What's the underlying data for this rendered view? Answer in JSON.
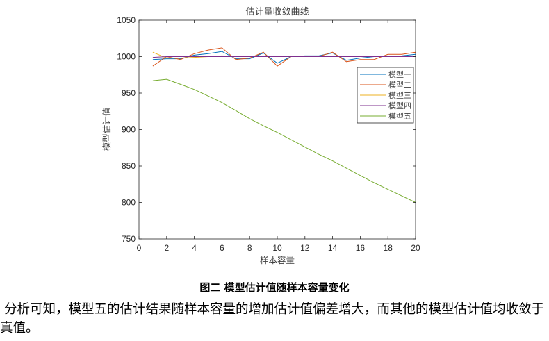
{
  "chart_data": {
    "type": "line",
    "title": "估计量收敛曲线",
    "xlabel": "样本容量",
    "ylabel": "模型估计值",
    "xlim": [
      0,
      20
    ],
    "ylim": [
      750,
      1050
    ],
    "xticks": [
      0,
      2,
      4,
      6,
      8,
      10,
      12,
      14,
      16,
      18,
      20
    ],
    "yticks": [
      750,
      800,
      850,
      900,
      950,
      1000,
      1050
    ],
    "grid": false,
    "legend_position": "right-middle",
    "x": [
      1,
      2,
      3,
      4,
      5,
      6,
      7,
      8,
      9,
      10,
      11,
      12,
      13,
      14,
      15,
      16,
      17,
      18,
      19,
      20
    ],
    "series": [
      {
        "name": "模型一",
        "color": "#0072BD",
        "values": [
          996,
          997,
          997,
          1002,
          1004,
          1007,
          997,
          997,
          1005,
          991,
          1000,
          1001,
          1001,
          1005,
          995,
          998,
          1000,
          1000,
          1001,
          1003
        ]
      },
      {
        "name": "模型二",
        "color": "#D95319",
        "values": [
          987,
          1000,
          996,
          1004,
          1009,
          1012,
          996,
          998,
          1006,
          987,
          1000,
          1000,
          1000,
          1006,
          993,
          996,
          996,
          1003,
          1003,
          1006
        ]
      },
      {
        "name": "模型三",
        "color": "#EDB120",
        "values": [
          1006,
          998,
          998,
          999,
          1000,
          1001,
          1000,
          1000,
          1000,
          1000,
          1000,
          1000,
          1000,
          1000,
          1000,
          1000,
          1000,
          1000,
          1000,
          1000
        ]
      },
      {
        "name": "模型四",
        "color": "#7E2F8E",
        "values": [
          999,
          1000,
          1000,
          1000,
          1000,
          1000,
          1000,
          1000,
          1000,
          1000,
          1000,
          1000,
          1000,
          1000,
          1000,
          1000,
          1000,
          1000,
          1000,
          1000
        ]
      },
      {
        "name": "模型五",
        "color": "#77AC30",
        "values": [
          967,
          969,
          962,
          955,
          946,
          937,
          926,
          915,
          905,
          896,
          886,
          876,
          866,
          857,
          847,
          837,
          827,
          818,
          809,
          800
        ]
      }
    ]
  },
  "figure": {
    "caption": "图二  模型估计值随样本容量变化"
  },
  "body_text": {
    "paragraph": "分析可知，模型五的估计结果随样本容量的增加估计值偏差增大，而其他的模型估计值均收敛于真值。"
  }
}
